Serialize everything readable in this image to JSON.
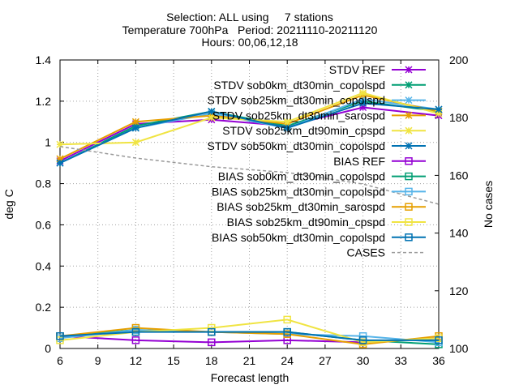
{
  "chart_data": {
    "type": "line",
    "title": [
      "Selection: ALL using     7 stations",
      "Temperature 700hPa   Period: 20211110-20211120",
      "Hours: 00,06,12,18"
    ],
    "xlabel": "Forecast length",
    "ylabel": "deg C",
    "y2label": "No cases",
    "xlim": [
      6,
      36
    ],
    "ylim": [
      0,
      1.4
    ],
    "y2lim": [
      100,
      200
    ],
    "xticks": [
      "6",
      "9",
      "12",
      "15",
      "18",
      "21",
      "24",
      "27",
      "30",
      "33",
      "36"
    ],
    "yticks": [
      "0",
      "0.2",
      "0.4",
      "0.6",
      "0.8",
      "1",
      "1.2",
      "1.4"
    ],
    "y2ticks": [
      "100",
      "120",
      "140",
      "160",
      "180",
      "200"
    ],
    "grid": true,
    "legend_position": "top-right",
    "x": [
      6,
      12,
      18,
      24,
      30,
      36
    ],
    "series": [
      {
        "name": "STDV REF",
        "axis": "y",
        "marker": "star",
        "color": "#9400d3",
        "values": [
          0.91,
          1.09,
          1.11,
          1.08,
          1.17,
          1.13
        ]
      },
      {
        "name": "STDV sob0km_dt30min_copolspd",
        "axis": "y",
        "marker": "star",
        "color": "#009e73",
        "values": [
          0.9,
          1.08,
          1.15,
          1.08,
          1.2,
          1.15
        ]
      },
      {
        "name": "STDV sob25km_dt30min_copolspd",
        "axis": "y",
        "marker": "star",
        "color": "#56b4e9",
        "values": [
          0.9,
          1.07,
          1.14,
          1.07,
          1.21,
          1.16
        ]
      },
      {
        "name": "STDV sob25km_dt30min_sarospd",
        "axis": "y",
        "marker": "star",
        "color": "#e69f00",
        "values": [
          0.92,
          1.1,
          1.13,
          1.09,
          1.23,
          1.15
        ]
      },
      {
        "name": "STDV sob25km_dt90min_cpspd",
        "axis": "y",
        "marker": "star",
        "color": "#f0e442",
        "values": [
          0.99,
          1.0,
          1.12,
          1.1,
          1.24,
          1.14
        ]
      },
      {
        "name": "STDV sob50km_dt30min_copolspd",
        "axis": "y",
        "marker": "star",
        "color": "#0072b2",
        "values": [
          0.9,
          1.07,
          1.15,
          1.07,
          1.19,
          1.16
        ]
      },
      {
        "name": "BIAS REF",
        "axis": "y",
        "marker": "square",
        "color": "#9400d3",
        "values": [
          0.06,
          0.04,
          0.03,
          0.04,
          0.03,
          0.05
        ]
      },
      {
        "name": "BIAS sob0km_dt30min_copolspd",
        "axis": "y",
        "marker": "square",
        "color": "#009e73",
        "values": [
          0.06,
          0.09,
          0.08,
          0.08,
          0.04,
          0.02
        ]
      },
      {
        "name": "BIAS sob25km_dt30min_copolspd",
        "axis": "y",
        "marker": "square",
        "color": "#56b4e9",
        "values": [
          0.05,
          0.09,
          0.08,
          0.07,
          0.06,
          0.03
        ]
      },
      {
        "name": "BIAS sob25km_dt30min_sarospd",
        "axis": "y",
        "marker": "square",
        "color": "#e69f00",
        "values": [
          0.06,
          0.1,
          0.08,
          0.07,
          0.02,
          0.06
        ]
      },
      {
        "name": "BIAS sob25km_dt90min_cpspd",
        "axis": "y",
        "marker": "square",
        "color": "#f0e442",
        "values": [
          0.04,
          0.08,
          0.1,
          0.14,
          0.03,
          0.05
        ]
      },
      {
        "name": "BIAS sob50km_dt30min_copolspd",
        "axis": "y",
        "marker": "square",
        "color": "#0072b2",
        "values": [
          0.06,
          0.08,
          0.08,
          0.08,
          0.04,
          0.04
        ]
      },
      {
        "name": "CASES",
        "axis": "y2",
        "marker": "none",
        "color": "#999999",
        "dashed": true,
        "values": [
          170,
          166,
          163,
          161,
          157,
          150
        ]
      }
    ]
  }
}
